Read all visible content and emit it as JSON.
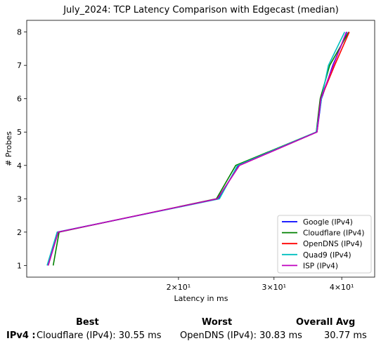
{
  "chart_data": {
    "type": "line",
    "title": "July_2024: TCP Latency Comparison with Edgecast (median)",
    "xlabel": "Latency in ms",
    "ylabel": "# Probes",
    "xscale": "log",
    "xlim": [
      10.5,
      46
    ],
    "ylim": [
      0.65,
      8.35
    ],
    "xticks": [
      {
        "value": 20,
        "label": "2×10¹"
      },
      {
        "value": 30,
        "label": "3×10¹"
      },
      {
        "value": 40,
        "label": "4×10¹"
      }
    ],
    "yticks": [
      1,
      2,
      3,
      4,
      5,
      6,
      7,
      8
    ],
    "grid": false,
    "legend_position": "lower-right",
    "series": [
      {
        "name": "Google (IPv4)",
        "color": "#0000ff",
        "points": [
          [
            11.5,
            1
          ],
          [
            12.0,
            2
          ],
          [
            23.7,
            3
          ],
          [
            25.8,
            4
          ],
          [
            36.0,
            5
          ],
          [
            36.7,
            6
          ],
          [
            38.5,
            7
          ],
          [
            40.9,
            8
          ]
        ]
      },
      {
        "name": "Cloudflare (IPv4)",
        "color": "#008000",
        "points": [
          [
            11.75,
            1
          ],
          [
            12.05,
            2
          ],
          [
            23.5,
            3
          ],
          [
            25.5,
            4
          ],
          [
            35.9,
            5
          ],
          [
            36.5,
            6
          ],
          [
            38.0,
            7
          ],
          [
            41.2,
            8
          ]
        ]
      },
      {
        "name": "OpenDNS (IPv4)",
        "color": "#ff0000",
        "points": [
          [
            11.5,
            1
          ],
          [
            12.0,
            2
          ],
          [
            23.6,
            3
          ],
          [
            25.9,
            4
          ],
          [
            36.0,
            5
          ],
          [
            36.6,
            6
          ],
          [
            38.8,
            7
          ],
          [
            41.3,
            8
          ]
        ]
      },
      {
        "name": "Quad9 (IPv4)",
        "color": "#00bfbf",
        "points": [
          [
            11.45,
            1
          ],
          [
            11.95,
            2
          ],
          [
            23.8,
            3
          ],
          [
            25.7,
            4
          ],
          [
            35.9,
            5
          ],
          [
            36.7,
            6
          ],
          [
            37.8,
            7
          ],
          [
            40.5,
            8
          ]
        ]
      },
      {
        "name": "ISP (IPv4)",
        "color": "#bf00bf",
        "points": [
          [
            11.5,
            1
          ],
          [
            12.0,
            2
          ],
          [
            23.6,
            3
          ],
          [
            25.9,
            4
          ],
          [
            36.0,
            5
          ],
          [
            36.6,
            6
          ],
          [
            38.6,
            7
          ],
          [
            40.8,
            8
          ]
        ]
      }
    ]
  },
  "summary": {
    "headers": {
      "best": "Best",
      "worst": "Worst",
      "avg": "Overall Avg"
    },
    "row_label": "IPv4 :",
    "best": "Cloudflare (IPv4): 30.55 ms",
    "worst": "OpenDNS (IPv4): 30.83 ms",
    "avg": "30.77 ms"
  }
}
